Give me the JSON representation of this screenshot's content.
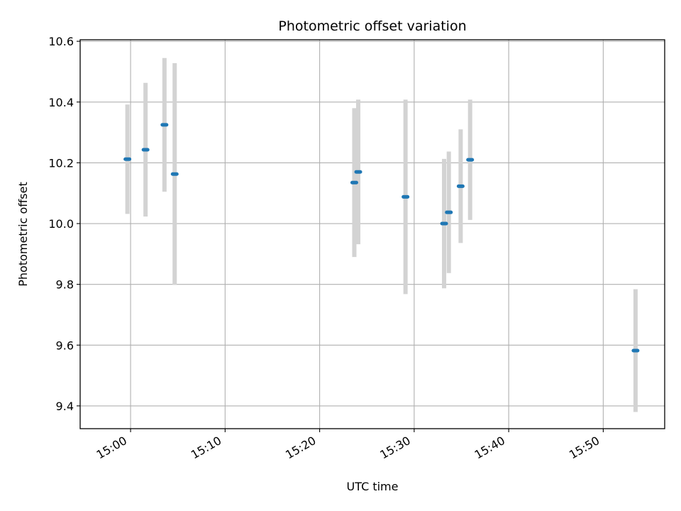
{
  "chart_data": {
    "type": "scatter",
    "title": "Photometric offset variation",
    "xlabel": "UTC time",
    "ylabel": "Photometric offset",
    "x_tick_labels": [
      "15:00",
      "15:10",
      "15:20",
      "15:30",
      "15:40",
      "15:50"
    ],
    "y_tick_labels": [
      "9.4",
      "9.6",
      "9.8",
      "10.0",
      "10.2",
      "10.4",
      "10.6"
    ],
    "y_ticks": [
      9.4,
      9.6,
      9.8,
      10.0,
      10.2,
      10.4,
      10.6
    ],
    "x_range": [
      "14:54:40",
      "15:56:30"
    ],
    "ylim": [
      9.325,
      10.605
    ],
    "grid": true,
    "colors": {
      "point": "#1f77b4",
      "errorbar": "#d3d3d3",
      "grid": "#b0b0b0"
    },
    "points": [
      {
        "time": "14:59:40",
        "y": 10.212,
        "yerr": 0.18
      },
      {
        "time": "15:01:35",
        "y": 10.243,
        "yerr": 0.22
      },
      {
        "time": "15:03:35",
        "y": 10.325,
        "yerr": 0.22
      },
      {
        "time": "15:04:40",
        "y": 10.163,
        "yerr": 0.365
      },
      {
        "time": "15:23:40",
        "y": 10.135,
        "yerr": 0.245
      },
      {
        "time": "15:24:05",
        "y": 10.17,
        "yerr": 0.238
      },
      {
        "time": "15:29:05",
        "y": 10.088,
        "yerr": 0.32
      },
      {
        "time": "15:33:10",
        "y": 10.0,
        "yerr": 0.213
      },
      {
        "time": "15:33:40",
        "y": 10.037,
        "yerr": 0.2
      },
      {
        "time": "15:34:55",
        "y": 10.123,
        "yerr": 0.187
      },
      {
        "time": "15:35:55",
        "y": 10.21,
        "yerr": 0.198
      },
      {
        "time": "15:53:25",
        "y": 9.582,
        "yerr": 0.202
      }
    ]
  }
}
